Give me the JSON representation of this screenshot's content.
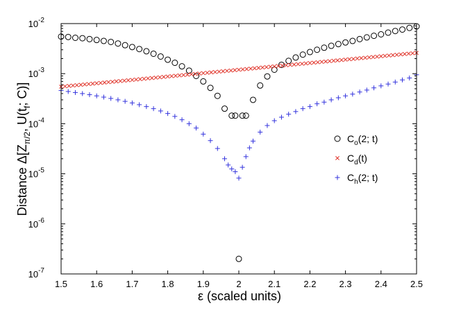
{
  "chart_data": {
    "type": "scatter",
    "xlabel": "ε (scaled units)",
    "ylabel": {
      "prefix": "Distance Δ[Z",
      "sub1": "π/2",
      "mid": ", U(t",
      "sub2": "f",
      "suffix": "; C)]"
    },
    "xlim": [
      1.5,
      2.5
    ],
    "ylim_log10": [
      -7,
      -2
    ],
    "y_scale": "log",
    "grid": false,
    "legend_position": "right",
    "x_ticks": [
      "1.5",
      "1.6",
      "1.7",
      "1.8",
      "1.9",
      "2",
      "2.1",
      "2.2",
      "2.3",
      "2.4",
      "2.5"
    ],
    "y_ticks": [
      {
        "base": "10",
        "exp": "-7"
      },
      {
        "base": "10",
        "exp": "-6"
      },
      {
        "base": "10",
        "exp": "-5"
      },
      {
        "base": "10",
        "exp": "-4"
      },
      {
        "base": "10",
        "exp": "-3"
      },
      {
        "base": "10",
        "exp": "-2"
      }
    ],
    "series": [
      {
        "name": "C_o(2; t)",
        "legend_main": "C",
        "legend_sub": "o",
        "legend_rest": "(2; t)",
        "marker": "circle",
        "color": "#000000",
        "x": [
          1.5,
          1.52,
          1.54,
          1.56,
          1.58,
          1.6,
          1.62,
          1.64,
          1.66,
          1.68,
          1.7,
          1.72,
          1.74,
          1.76,
          1.78,
          1.8,
          1.82,
          1.84,
          1.86,
          1.88,
          1.9,
          1.92,
          1.94,
          1.96,
          1.98,
          1.99,
          2.0,
          2.01,
          2.02,
          2.04,
          2.06,
          2.08,
          2.1,
          2.12,
          2.14,
          2.16,
          2.18,
          2.2,
          2.22,
          2.24,
          2.26,
          2.28,
          2.3,
          2.32,
          2.34,
          2.36,
          2.38,
          2.4,
          2.42,
          2.44,
          2.46,
          2.48,
          2.5
        ],
        "y": [
          0.0055,
          0.0054,
          0.0052,
          0.0051,
          0.0049,
          0.0047,
          0.0045,
          0.0043,
          0.004,
          0.0037,
          0.0034,
          0.0031,
          0.0028,
          0.0025,
          0.0022,
          0.0019,
          0.00165,
          0.0014,
          0.00115,
          0.0009,
          0.0007,
          0.00052,
          0.00036,
          0.0002,
          0.000145,
          0.000145,
          2e-07,
          0.000145,
          0.000145,
          0.0003,
          0.00058,
          0.00088,
          0.0012,
          0.0015,
          0.0018,
          0.0021,
          0.0024,
          0.0027,
          0.003,
          0.0033,
          0.0036,
          0.0039,
          0.0042,
          0.0045,
          0.0049,
          0.0053,
          0.0057,
          0.0061,
          0.0066,
          0.0071,
          0.0076,
          0.0082,
          0.0088
        ]
      },
      {
        "name": "C_d(t)",
        "legend_main": "C",
        "legend_sub": "d",
        "legend_rest": "(t)",
        "marker": "x",
        "color": "#e0342a",
        "x_start": 1.5,
        "x_end": 2.5,
        "y_start": 0.00055,
        "y_end": 0.0026,
        "count": 91
      },
      {
        "name": "C_h(2; t)",
        "legend_main": "C",
        "legend_sub": "h",
        "legend_rest": "(2; t)",
        "marker": "plus",
        "color": "#3333dd",
        "x": [
          1.5,
          1.52,
          1.54,
          1.56,
          1.58,
          1.6,
          1.62,
          1.64,
          1.66,
          1.68,
          1.7,
          1.72,
          1.74,
          1.76,
          1.78,
          1.8,
          1.82,
          1.84,
          1.86,
          1.88,
          1.9,
          1.92,
          1.94,
          1.96,
          1.97,
          1.98,
          1.99,
          2.0,
          2.01,
          2.02,
          2.03,
          2.04,
          2.06,
          2.08,
          2.1,
          2.12,
          2.14,
          2.16,
          2.18,
          2.2,
          2.22,
          2.24,
          2.26,
          2.28,
          2.3,
          2.32,
          2.34,
          2.36,
          2.38,
          2.4,
          2.42,
          2.44,
          2.46,
          2.48,
          2.5
        ],
        "y": [
          0.00046,
          0.00044,
          0.00042,
          0.0004,
          0.00038,
          0.00036,
          0.00034,
          0.00032,
          0.0003,
          0.00028,
          0.00026,
          0.00024,
          0.00022,
          0.0002,
          0.00018,
          0.00016,
          0.00014,
          0.00012,
          0.0001,
          8.2e-05,
          6.2e-05,
          4.6e-05,
          3.2e-05,
          2e-05,
          1.5e-05,
          1.25e-05,
          1.1e-05,
          8.2e-06,
          1.35e-05,
          2.2e-05,
          3.3e-05,
          4.5e-05,
          6.8e-05,
          9.2e-05,
          0.000115,
          0.000135,
          0.000155,
          0.000175,
          0.0002,
          0.00022,
          0.00025,
          0.00027,
          0.0003,
          0.00033,
          0.00036,
          0.00039,
          0.00043,
          0.00047,
          0.00052,
          0.00057,
          0.00062,
          0.00068,
          0.00075,
          0.00082,
          0.00095
        ]
      }
    ]
  }
}
